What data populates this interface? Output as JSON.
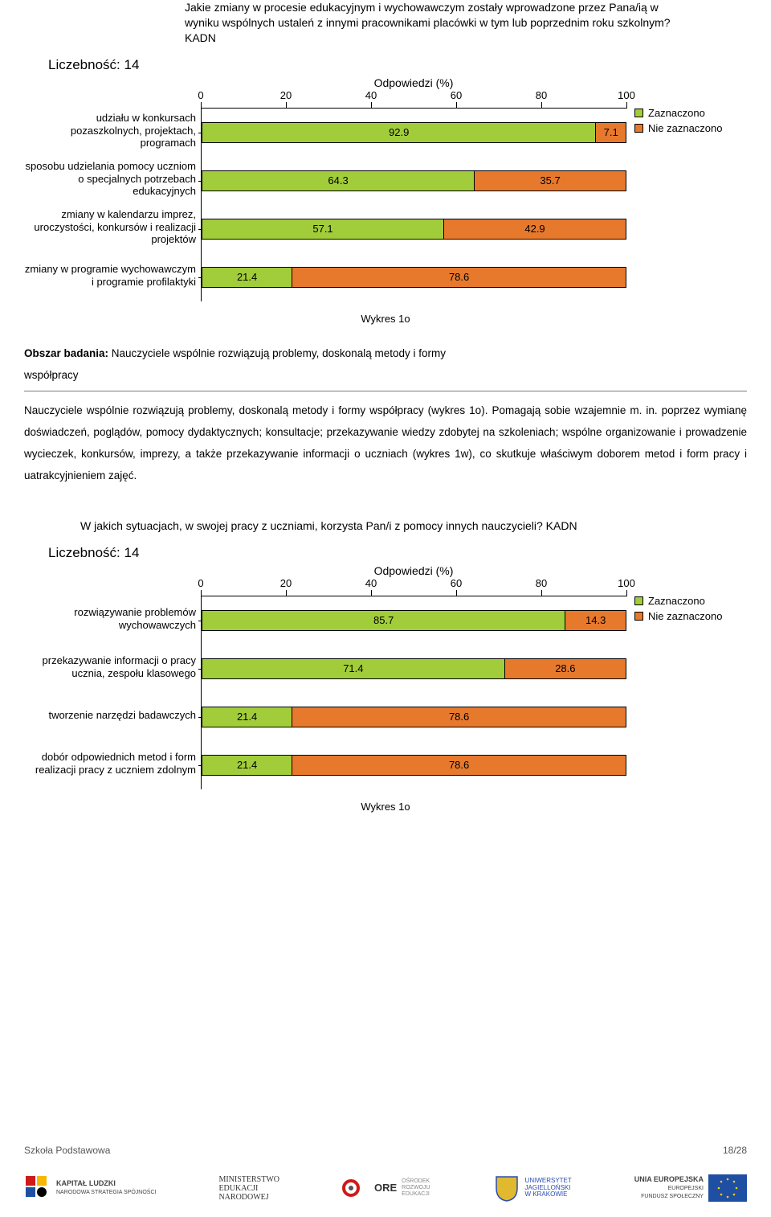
{
  "colors": {
    "green": "#a2cd3a",
    "orange": "#e7792d",
    "axis": "#000000",
    "bg": "#ffffff",
    "eu_blue": "#1f4fa3",
    "kl_yellow": "#f6b700",
    "ore_red": "#cf1a1a",
    "uj_yellow": "#e0b92f"
  },
  "chart1": {
    "title": "Jakie zmiany w procesie edukacyjnym i wychowawczym zostały wprowadzone przez Pana/ią w wyniku wspólnych ustaleń z innymi pracownikami placówki w tym lub poprzednim roku szkolnym? KADN",
    "count_label": "Liczebność: 14",
    "axis_title": "Odpowiedzi (%)",
    "ticks": [
      "0",
      "20",
      "40",
      "60",
      "80",
      "100"
    ],
    "categories": [
      "udziału w konkursach pozaszkolnych, projektach, programach",
      "sposobu udzielania pomocy uczniom o specjalnych potrzebach edukacyjnych",
      "zmiany w kalendarzu imprez, uroczystości, konkursów i realizacji projektów",
      "zmiany w programie wychowawczym i programie profilaktyki"
    ],
    "series": [
      {
        "green": 92.9,
        "orange": 7.1
      },
      {
        "green": 64.3,
        "orange": 35.7
      },
      {
        "green": 57.1,
        "orange": 42.9
      },
      {
        "green": 21.4,
        "orange": 78.6
      }
    ],
    "legend": {
      "green": "Zaznaczono",
      "orange": "Nie zaznaczono"
    },
    "caption": "Wykres 1o"
  },
  "paragraph": {
    "section_label": "Obszar badania:",
    "section_text": "Nauczyciele wspólnie rozwiązują problemy, doskonalą metody i formy",
    "section_text2": "współpracy",
    "body": "Nauczyciele wspólnie rozwiązują problemy, doskonalą metody i formy współpracy (wykres 1o). Pomagają sobie wzajemnie m. in. poprzez wymianę doświadczeń, poglądów, pomocy dydaktycznych; konsultacje; przekazywanie wiedzy zdobytej na szkoleniach; wspólne organizowanie i prowadzenie wycieczek, konkursów, imprezy, a także przekazywanie informacji o uczniach (wykres 1w), co skutkuje właściwym doborem metod i form pracy i uatrakcyjnieniem zajęć."
  },
  "chart2": {
    "title": "W jakich sytuacjach, w swojej pracy z uczniami, korzysta Pan/i z pomocy innych nauczycieli? KADN",
    "count_label": "Liczebność: 14",
    "axis_title": "Odpowiedzi (%)",
    "ticks": [
      "0",
      "20",
      "40",
      "60",
      "80",
      "100"
    ],
    "categories": [
      "rozwiązywanie problemów wychowawczych",
      "przekazywanie informacji o pracy ucznia,  zespołu klasowego",
      "tworzenie narzędzi badawczych",
      "dobór odpowiednich metod i form realizacji pracy z uczniem zdolnym"
    ],
    "series": [
      {
        "green": 85.7,
        "orange": 14.3
      },
      {
        "green": 71.4,
        "orange": 28.6
      },
      {
        "green": 21.4,
        "orange": 78.6
      },
      {
        "green": 21.4,
        "orange": 78.6
      }
    ],
    "legend": {
      "green": "Zaznaczono",
      "orange": "Nie zaznaczono"
    },
    "caption": "Wykres 1o"
  },
  "footer": {
    "left": "Szkoła Podstawowa",
    "right": "18/28"
  },
  "logos": {
    "kl": "KAPITAŁ LUDZKI",
    "kl_sub": "NARODOWA STRATEGIA SPÓJNOŚCI",
    "men": "MINISTERSTWO\nEDUKACJI\nNARODOWEJ",
    "ore": "ORE",
    "ore_sub": "OŚRODEK\nROZWOJU\nEDUKACJI",
    "uj": "UNIWERSYTET\nJAGIELLOŃSKI\nW KRAKOWIE",
    "eu": "UNIA EUROPEJSKA",
    "eu_sub": "EUROPEJSKI\nFUNDUSZ SPOŁECZNY"
  }
}
